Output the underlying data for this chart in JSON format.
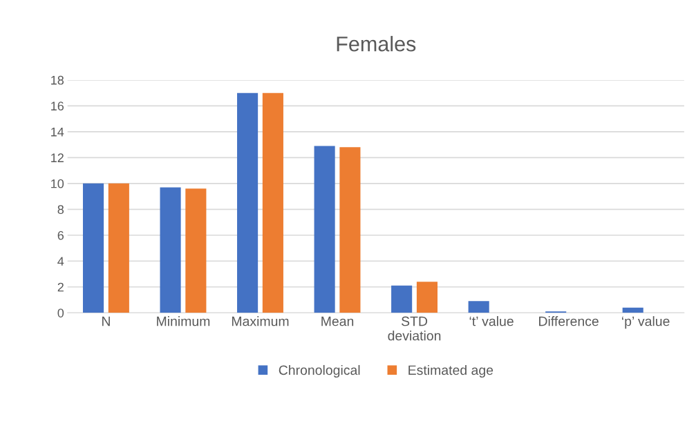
{
  "chart_data": {
    "type": "bar",
    "title": "Females",
    "categories": [
      "N",
      "Minimum",
      "Maximum",
      "Mean",
      "STD\ndeviation",
      "‘t’ value",
      "Difference",
      "‘p’ value"
    ],
    "series": [
      {
        "name": "Chronological",
        "color": "#4472c4",
        "values": [
          10,
          9.7,
          17,
          12.9,
          2.1,
          0.9,
          0.1,
          0.4
        ]
      },
      {
        "name": "Estimated age",
        "color": "#ed7d31",
        "values": [
          10,
          9.6,
          17,
          12.8,
          2.4,
          null,
          null,
          null
        ]
      }
    ],
    "ylim": [
      0,
      18
    ],
    "yticks": [
      0,
      2,
      4,
      6,
      8,
      10,
      12,
      14,
      16,
      18
    ],
    "grid": "y",
    "legend": "bottom"
  }
}
